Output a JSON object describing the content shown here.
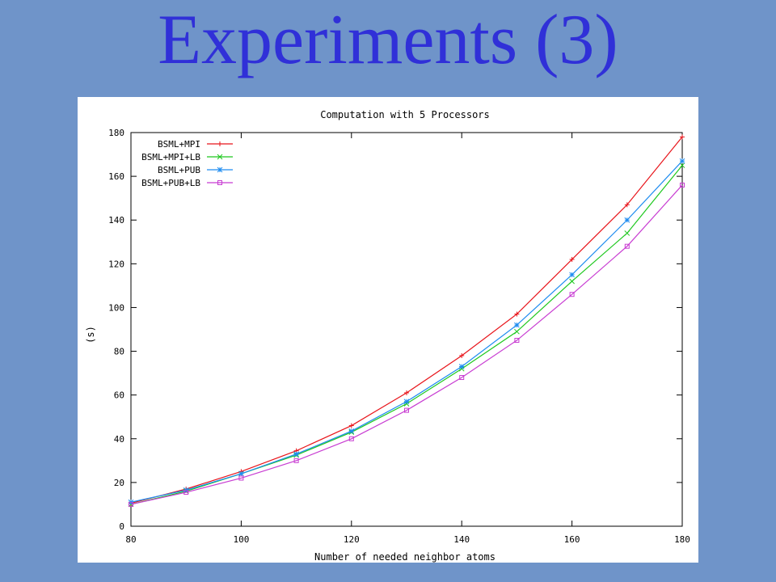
{
  "slide": {
    "title": "Experiments (3)",
    "colors": {
      "background": "#6f94c9",
      "title": "#3030d8"
    }
  },
  "chart_data": {
    "type": "line",
    "title": "Computation with 5 Processors",
    "xlabel": "Number of needed neighbor atoms",
    "ylabel": "(s)",
    "xlim": [
      80,
      180
    ],
    "ylim": [
      0,
      180
    ],
    "xticks": [
      80,
      100,
      120,
      140,
      160,
      180
    ],
    "yticks": [
      0,
      20,
      40,
      60,
      80,
      100,
      120,
      140,
      160,
      180
    ],
    "grid": false,
    "legend_position": "top-left",
    "x": [
      80,
      90,
      100,
      110,
      120,
      130,
      140,
      150,
      160,
      170,
      180
    ],
    "series": [
      {
        "name": "BSML+MPI",
        "color": "#e8141a",
        "marker": "plus",
        "values": [
          10.5,
          17,
          25,
          34.5,
          46,
          61,
          78,
          97,
          122,
          147,
          178
        ]
      },
      {
        "name": "BSML+MPI+LB",
        "color": "#1ec81e",
        "marker": "x",
        "values": [
          10,
          16,
          24,
          32.5,
          43,
          56,
          72,
          89,
          112,
          134,
          165
        ]
      },
      {
        "name": "BSML+PUB",
        "color": "#1e8cf0",
        "marker": "star",
        "values": [
          11,
          16.5,
          24,
          33,
          43.5,
          57,
          73,
          92,
          115,
          140,
          167
        ]
      },
      {
        "name": "BSML+PUB+LB",
        "color": "#c83cd2",
        "marker": "square",
        "values": [
          10,
          15.5,
          22,
          30,
          40,
          53,
          68,
          85,
          106,
          128,
          156
        ]
      }
    ]
  }
}
